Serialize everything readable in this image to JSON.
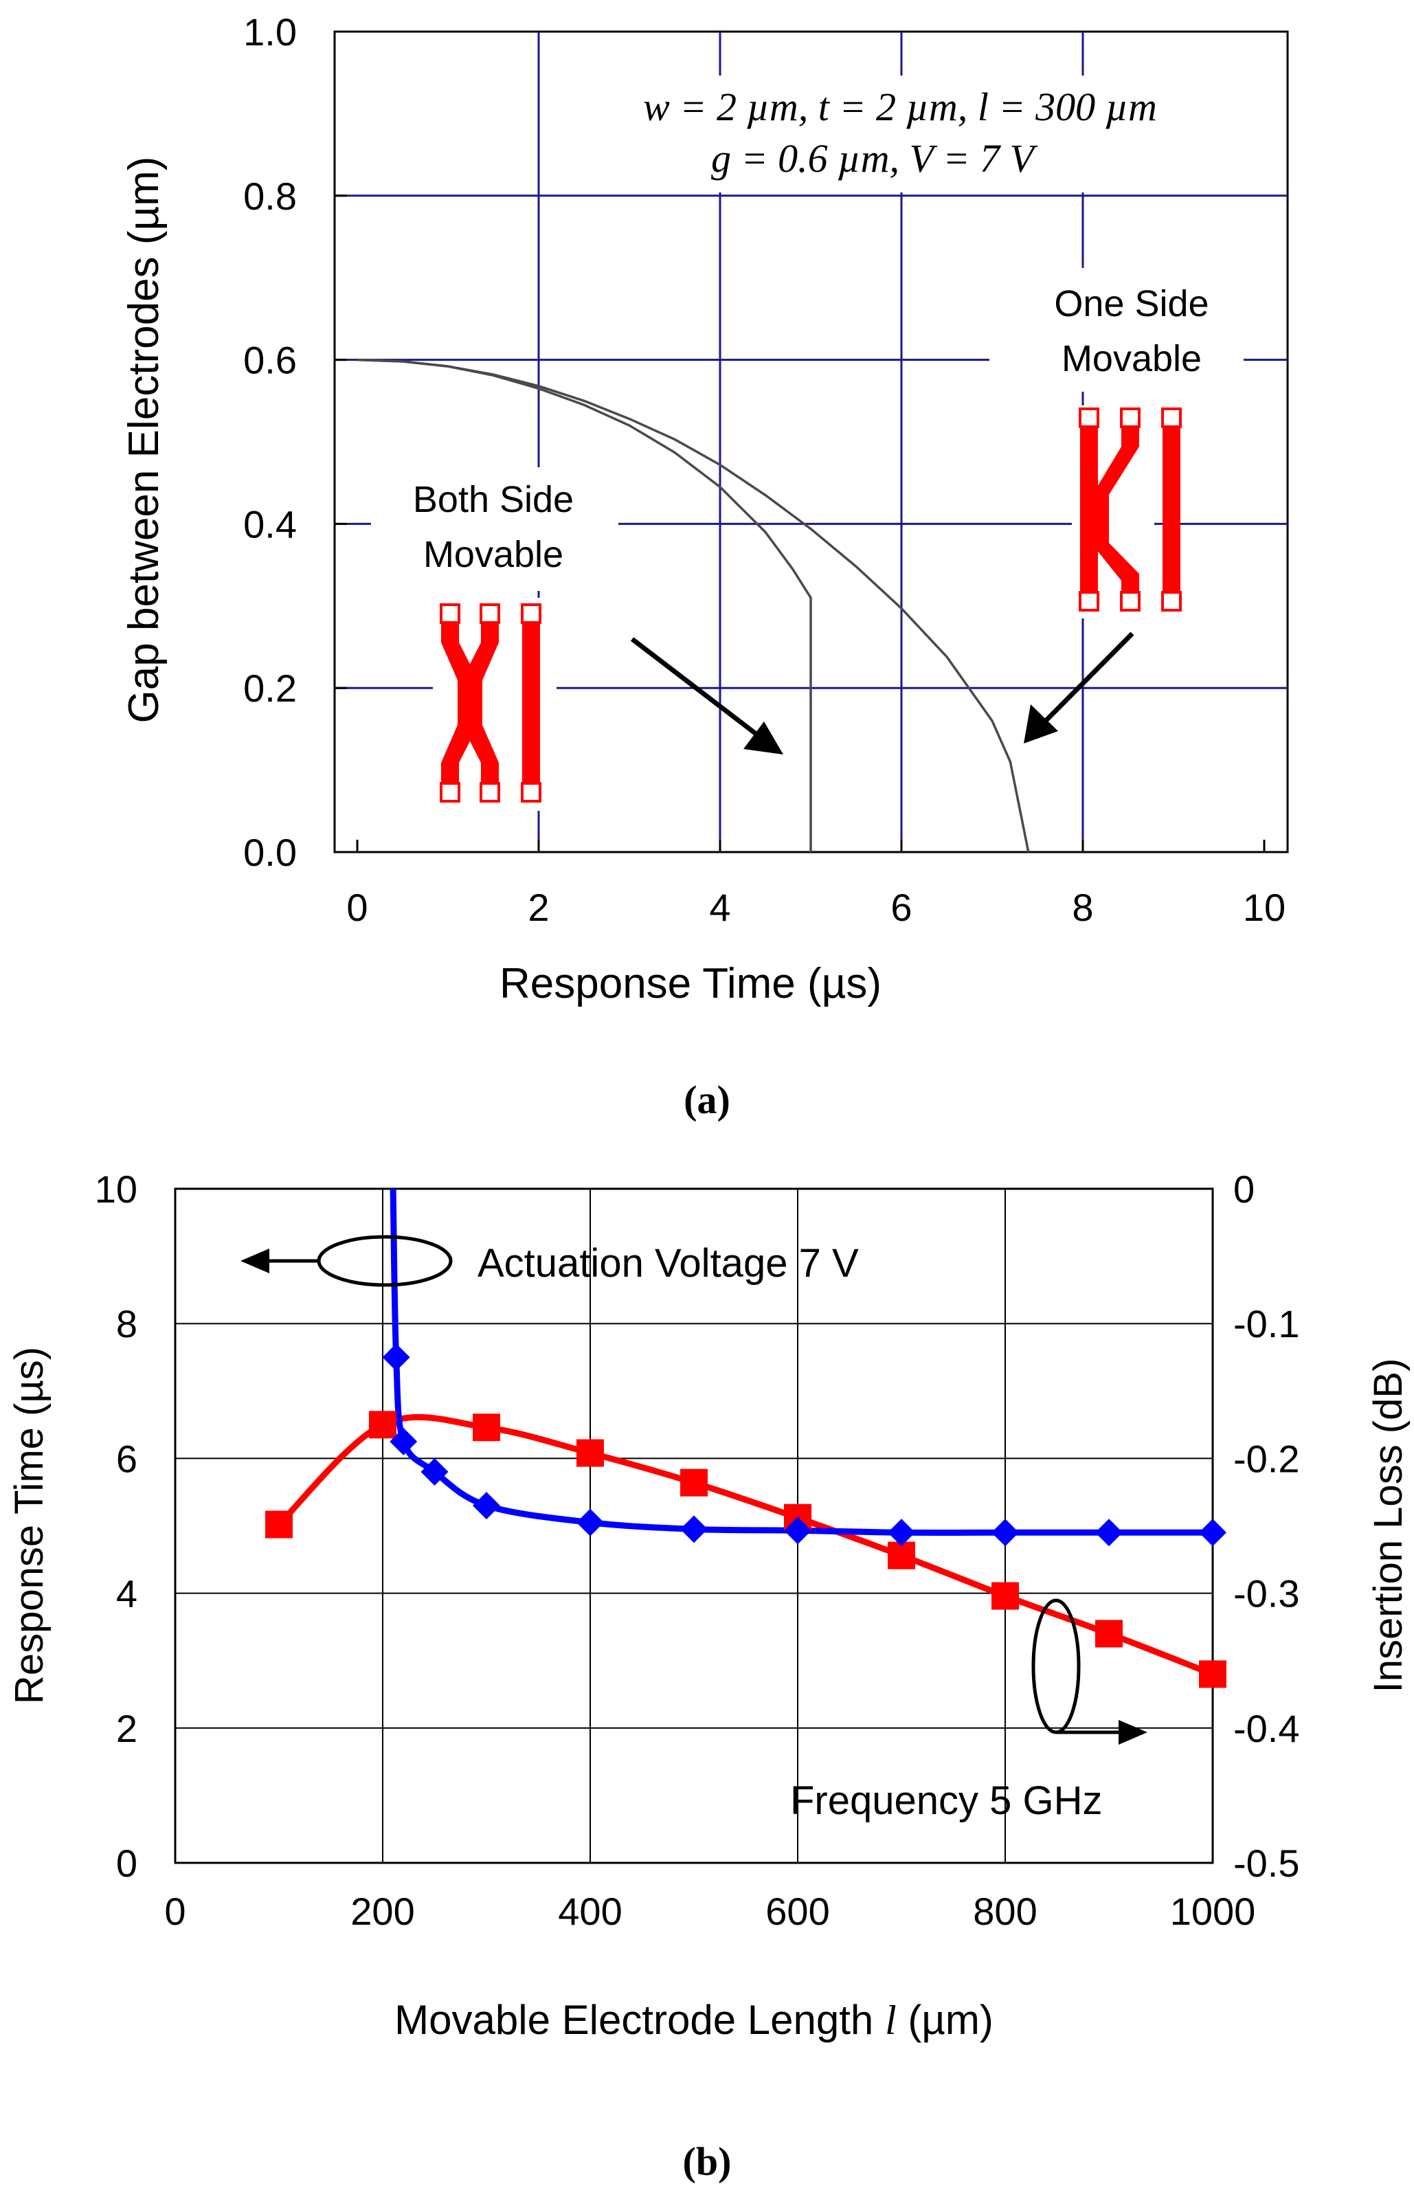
{
  "chart_data": [
    {
      "type": "line",
      "panel_label": "(a)",
      "xlabel": "Response Time (µs)",
      "ylabel": "Gap between Electrodes (µm)",
      "xlim": [
        0,
        10
      ],
      "ylim": [
        0,
        1
      ],
      "x_ticks": [
        "0",
        "2",
        "4",
        "6",
        "8",
        "10"
      ],
      "y_ticks": [
        "0.0",
        "0.2",
        "0.4",
        "0.6",
        "0.8",
        "1.0"
      ],
      "grid": true,
      "annotation_line1": "w = 2 µm, t = 2 µm, l = 300 µm",
      "annotation_line2": "g = 0.6 µm, V = 7 V",
      "series": [
        {
          "name": "Both Side Movable",
          "label_line1": "Both Side",
          "label_line2": "Movable",
          "x": [
            0,
            0.5,
            1,
            1.5,
            2,
            2.5,
            3,
            3.5,
            4,
            4.5,
            4.8,
            5.0,
            5.0
          ],
          "y": [
            0.6,
            0.598,
            0.592,
            0.581,
            0.565,
            0.545,
            0.52,
            0.487,
            0.445,
            0.39,
            0.345,
            0.31,
            0.0
          ]
        },
        {
          "name": "One Side Movable",
          "label_line1": "One Side",
          "label_line2": "Movable",
          "x": [
            0,
            0.5,
            1,
            1.5,
            2,
            2.5,
            3,
            3.5,
            4,
            4.5,
            5,
            5.5,
            6,
            6.5,
            7,
            7.2,
            7.4
          ],
          "y": [
            0.6,
            0.598,
            0.592,
            0.582,
            0.568,
            0.55,
            0.528,
            0.503,
            0.472,
            0.435,
            0.394,
            0.348,
            0.297,
            0.238,
            0.16,
            0.11,
            0.0
          ]
        }
      ]
    },
    {
      "type": "line",
      "panel_label": "(b)",
      "xlabel": "Movable Electrode Length l (µm)",
      "xlabel_main": "Movable Electrode Length",
      "xlabel_var": "l",
      "xlabel_unit": "(µm)",
      "ylabel_left": "Response Time (µs)",
      "ylabel_right": "Insertion Loss (dB)",
      "xlim": [
        0,
        1000
      ],
      "ylim_left": [
        0,
        10
      ],
      "ylim_right": [
        -0.5,
        0
      ],
      "x_ticks": [
        "0",
        "200",
        "400",
        "600",
        "800",
        "1000"
      ],
      "y_left_ticks": [
        "0",
        "2",
        "4",
        "6",
        "8",
        "10"
      ],
      "y_right_ticks": [
        "-0.5",
        "-0.4",
        "-0.3",
        "-0.2",
        "-0.1",
        "0"
      ],
      "grid": true,
      "series": [
        {
          "name": "Response Time",
          "axis": "left",
          "color": "#0000ff",
          "marker": "diamond",
          "label": "Actuation Voltage 7 V",
          "x": [
            210,
            213,
            220,
            250,
            300,
            400,
            500,
            600,
            700,
            800,
            900,
            1000
          ],
          "y": [
            10.2,
            7.5,
            6.25,
            5.8,
            5.3,
            5.05,
            4.95,
            4.93,
            4.9,
            4.9,
            4.9,
            4.9
          ]
        },
        {
          "name": "Insertion Loss",
          "axis": "right",
          "color": "#ff0000",
          "marker": "square",
          "label": "Frequency 5 GHz",
          "x": [
            100,
            200,
            300,
            400,
            500,
            600,
            700,
            800,
            900,
            1000
          ],
          "y": [
            -0.249,
            -0.175,
            -0.177,
            -0.196,
            -0.218,
            -0.244,
            -0.272,
            -0.302,
            -0.33,
            -0.36
          ]
        }
      ]
    }
  ],
  "colors": {
    "grid": "#1a1a8c",
    "axis": "#000000",
    "curve_a": "#4a4a4a",
    "electrode": "#ff0000"
  }
}
